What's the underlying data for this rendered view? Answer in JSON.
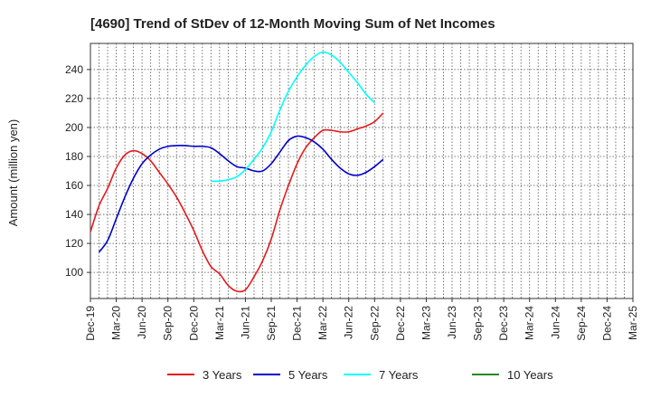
{
  "chart_data": {
    "type": "line",
    "title": "[4690]  Trend of StDev of 12-Month Moving Sum of Net Incomes",
    "ylabel": "Amount (million yen)",
    "xlabel": "",
    "ylim": [
      82,
      258
    ],
    "yticks": [
      100,
      120,
      140,
      160,
      180,
      200,
      220,
      240
    ],
    "x_tick_labels": [
      "Dec-19",
      "Mar-20",
      "Jun-20",
      "Sep-20",
      "Dec-20",
      "Mar-21",
      "Jun-21",
      "Sep-21",
      "Dec-21",
      "Mar-22",
      "Jun-22",
      "Sep-22",
      "Dec-22",
      "Mar-23",
      "Jun-23",
      "Sep-23",
      "Dec-23",
      "Mar-24",
      "Jun-24",
      "Sep-24",
      "Dec-24",
      "Mar-25"
    ],
    "grid": true,
    "legend_position": "bottom",
    "series": [
      {
        "name": "3 Years",
        "color": "#e41a1c",
        "points": [
          [
            0,
            128
          ],
          [
            1,
            146
          ],
          [
            2,
            158
          ],
          [
            3,
            172
          ],
          [
            4,
            181
          ],
          [
            5,
            184
          ],
          [
            6,
            182
          ],
          [
            7,
            177
          ],
          [
            8,
            169
          ],
          [
            9,
            161
          ],
          [
            10,
            152
          ],
          [
            11,
            141
          ],
          [
            12,
            129
          ],
          [
            13,
            115
          ],
          [
            14,
            104
          ],
          [
            15,
            99
          ],
          [
            16,
            91
          ],
          [
            17,
            87
          ],
          [
            18,
            88
          ],
          [
            19,
            97
          ],
          [
            20,
            108
          ],
          [
            21,
            123
          ],
          [
            22,
            143
          ],
          [
            23,
            160
          ],
          [
            24,
            175
          ],
          [
            25,
            186
          ],
          [
            26,
            193
          ],
          [
            27,
            198
          ],
          [
            28,
            198
          ],
          [
            29,
            197
          ],
          [
            30,
            197
          ],
          [
            31,
            199
          ],
          [
            32,
            201
          ],
          [
            33,
            204
          ],
          [
            34,
            210
          ]
        ]
      },
      {
        "name": "5 Years",
        "color": "#0000cc",
        "points": [
          [
            1,
            114
          ],
          [
            2,
            122
          ],
          [
            3,
            137
          ],
          [
            4,
            152
          ],
          [
            5,
            165
          ],
          [
            6,
            175
          ],
          [
            7,
            181
          ],
          [
            8,
            185
          ],
          [
            9,
            187
          ],
          [
            10,
            187.5
          ],
          [
            11,
            187.5
          ],
          [
            12,
            187
          ],
          [
            13,
            187
          ],
          [
            14,
            186
          ],
          [
            15,
            182
          ],
          [
            16,
            177
          ],
          [
            17,
            173
          ],
          [
            18,
            172
          ],
          [
            19,
            170
          ],
          [
            20,
            170
          ],
          [
            21,
            175
          ],
          [
            22,
            183
          ],
          [
            23,
            191
          ],
          [
            24,
            194
          ],
          [
            25,
            193
          ],
          [
            26,
            190
          ],
          [
            27,
            185
          ],
          [
            28,
            178
          ],
          [
            29,
            172
          ],
          [
            30,
            168
          ],
          [
            31,
            167
          ],
          [
            32,
            169
          ],
          [
            33,
            173
          ],
          [
            34,
            178
          ]
        ]
      },
      {
        "name": "7 Years",
        "color": "#00ffff",
        "points": [
          [
            14,
            163
          ],
          [
            15,
            163
          ],
          [
            16,
            164
          ],
          [
            17,
            166
          ],
          [
            18,
            171
          ],
          [
            19,
            178
          ],
          [
            20,
            186
          ],
          [
            21,
            197
          ],
          [
            22,
            212
          ],
          [
            23,
            225
          ],
          [
            24,
            235
          ],
          [
            25,
            243
          ],
          [
            26,
            249
          ],
          [
            27,
            252
          ],
          [
            28,
            250
          ],
          [
            29,
            245
          ],
          [
            30,
            238
          ],
          [
            31,
            231
          ],
          [
            32,
            223
          ],
          [
            33,
            217
          ]
        ]
      },
      {
        "name": "10 Years",
        "color": "#228b22",
        "points": []
      }
    ]
  }
}
